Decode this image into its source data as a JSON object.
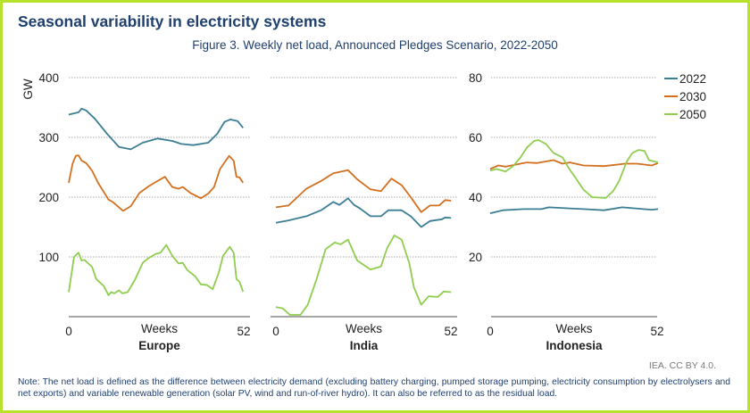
{
  "header": {
    "title": "Seasonal variability in electricity systems",
    "subtitle": "Figure 3. Weekly net load, Announced Pledges Scenario, 2022-2050"
  },
  "footer": {
    "credit": "IEA. CC BY 4.0.",
    "note": "Note: The net load is defined as the difference between electricity demand (excluding battery charging, pumped storage pumping, electricity consumption by electrolysers and net exports) and variable renewable generation (solar PV, wind and run-of-river hydro). It can also be referred to as the residual load."
  },
  "chart_data": {
    "type": "line",
    "ylabel": "GW",
    "legend": {
      "placement": "right",
      "entries": [
        "2022",
        "2030",
        "2050"
      ]
    },
    "colors": {
      "2022": "#3b7e94",
      "2030": "#d2701f",
      "2050": "#8fcd4f"
    },
    "grid": "horizontal dotted",
    "panels": [
      {
        "name": "Europe",
        "xlabel": "Weeks",
        "xticks": [
          "0",
          "52"
        ],
        "xlim": [
          0,
          52
        ],
        "ylim": [
          0,
          400
        ],
        "yticks": [
          "400",
          "300",
          "200",
          "100"
        ],
        "series": [
          {
            "name": "2022",
            "points": [
              [
                0,
                338
              ],
              [
                2.8,
                342
              ],
              [
                3.7,
                348
              ],
              [
                5,
                345
              ],
              [
                7.5,
                331
              ],
              [
                11,
                306
              ],
              [
                14.4,
                284
              ],
              [
                17.8,
                280
              ],
              [
                21.2,
                291
              ],
              [
                25.5,
                298
              ],
              [
                29.7,
                294
              ],
              [
                32.3,
                289
              ],
              [
                35.7,
                287
              ],
              [
                40,
                291
              ],
              [
                42.6,
                306
              ],
              [
                44.7,
                326
              ],
              [
                46.4,
                330
              ],
              [
                48.5,
                327
              ],
              [
                50,
                316
              ]
            ]
          },
          {
            "name": "2030",
            "points": [
              [
                0,
                224
              ],
              [
                1.1,
                256
              ],
              [
                2,
                269
              ],
              [
                2.8,
                270
              ],
              [
                3.7,
                261
              ],
              [
                5,
                257
              ],
              [
                6.7,
                244
              ],
              [
                8.4,
                224
              ],
              [
                11.4,
                196
              ],
              [
                12.6,
                192
              ],
              [
                15.6,
                177
              ],
              [
                17.8,
                185
              ],
              [
                20.3,
                207
              ],
              [
                22.9,
                218
              ],
              [
                25.5,
                227
              ],
              [
                27.6,
                234
              ],
              [
                29.7,
                217
              ],
              [
                31.5,
                214
              ],
              [
                32.7,
                217
              ],
              [
                34.9,
                207
              ],
              [
                37.9,
                198
              ],
              [
                40,
                206
              ],
              [
                41.7,
                217
              ],
              [
                43.4,
                247
              ],
              [
                46,
                269
              ],
              [
                47.3,
                261
              ],
              [
                48.1,
                234
              ],
              [
                49,
                233
              ],
              [
                50,
                224
              ]
            ]
          },
          {
            "name": "2050",
            "points": [
              [
                0,
                41
              ],
              [
                1.5,
                100
              ],
              [
                2.8,
                107
              ],
              [
                3.7,
                94
              ],
              [
                4.5,
                95
              ],
              [
                6.7,
                83
              ],
              [
                7.9,
                63
              ],
              [
                10.1,
                51
              ],
              [
                11.4,
                36
              ],
              [
                12.2,
                41
              ],
              [
                13.1,
                39
              ],
              [
                14.4,
                44
              ],
              [
                15.4,
                39
              ],
              [
                16.9,
                41
              ],
              [
                19.1,
                63
              ],
              [
                21.2,
                90
              ],
              [
                22.9,
                98
              ],
              [
                25,
                105
              ],
              [
                26.3,
                107
              ],
              [
                28,
                120
              ],
              [
                29.7,
                102
              ],
              [
                31.5,
                89
              ],
              [
                32.7,
                90
              ],
              [
                34,
                78
              ],
              [
                36.2,
                68
              ],
              [
                37.9,
                54
              ],
              [
                39.6,
                53
              ],
              [
                41.3,
                46
              ],
              [
                43,
                73
              ],
              [
                44.3,
                102
              ],
              [
                46.2,
                117
              ],
              [
                47.3,
                107
              ],
              [
                48.1,
                63
              ],
              [
                49,
                58
              ],
              [
                50,
                42
              ]
            ]
          }
        ]
      },
      {
        "name": "India",
        "xlabel": "Weeks",
        "xticks": [
          "0",
          "52"
        ],
        "xlim": [
          0,
          52
        ],
        "ylim": [
          0,
          400
        ],
        "series": [
          {
            "name": "2022",
            "points": [
              [
                0,
                157
              ],
              [
                3.6,
                161
              ],
              [
                8.7,
                168
              ],
              [
                12.9,
                178
              ],
              [
                16.4,
                192
              ],
              [
                18.1,
                187
              ],
              [
                20.6,
                198
              ],
              [
                22.3,
                187
              ],
              [
                24,
                181
              ],
              [
                27,
                168
              ],
              [
                30,
                168
              ],
              [
                32.1,
                178
              ],
              [
                35.9,
                178
              ],
              [
                38.5,
                168
              ],
              [
                41.5,
                150
              ],
              [
                44,
                160
              ],
              [
                47.4,
                163
              ],
              [
                48.3,
                166
              ],
              [
                50,
                165
              ]
            ]
          },
          {
            "name": "2030",
            "points": [
              [
                0,
                183
              ],
              [
                3.6,
                186
              ],
              [
                8.7,
                214
              ],
              [
                12.9,
                227
              ],
              [
                16.4,
                240
              ],
              [
                20.6,
                245
              ],
              [
                23.2,
                230
              ],
              [
                27,
                213
              ],
              [
                30,
                210
              ],
              [
                33,
                231
              ],
              [
                35.9,
                220
              ],
              [
                38.5,
                200
              ],
              [
                41.5,
                175
              ],
              [
                44,
                186
              ],
              [
                46.6,
                186
              ],
              [
                48.3,
                195
              ],
              [
                50,
                194
              ]
            ]
          },
          {
            "name": "2050",
            "points": [
              [
                0,
                16
              ],
              [
                1.9,
                14
              ],
              [
                4,
                3
              ],
              [
                7,
                3
              ],
              [
                9.1,
                20
              ],
              [
                11.7,
                64
              ],
              [
                14.2,
                113
              ],
              [
                16.8,
                124
              ],
              [
                18.5,
                121
              ],
              [
                20.6,
                129
              ],
              [
                23.2,
                94
              ],
              [
                27,
                79
              ],
              [
                30,
                84
              ],
              [
                31.7,
                114
              ],
              [
                33.8,
                136
              ],
              [
                35.9,
                129
              ],
              [
                38.1,
                89
              ],
              [
                39.4,
                49
              ],
              [
                41.5,
                20
              ],
              [
                43.6,
                34
              ],
              [
                46.2,
                33
              ],
              [
                47.9,
                42
              ],
              [
                50,
                41
              ]
            ]
          }
        ]
      },
      {
        "name": "Indonesia",
        "xlabel": "Weeks",
        "xticks": [
          "0",
          "52"
        ],
        "xlim": [
          0,
          52
        ],
        "ylim": [
          0,
          80
        ],
        "yticks": [
          "80",
          "60",
          "40",
          "20"
        ],
        "series": [
          {
            "name": "2022",
            "points": [
              [
                0,
                34.6
              ],
              [
                3.9,
                35.6
              ],
              [
                10.4,
                36
              ],
              [
                15.9,
                36
              ],
              [
                18.2,
                36.6
              ],
              [
                23.3,
                36.3
              ],
              [
                28.9,
                36
              ],
              [
                35.3,
                35.6
              ],
              [
                40.9,
                36.6
              ],
              [
                47.4,
                36
              ],
              [
                50.1,
                35.8
              ],
              [
                52,
                36
              ]
            ]
          },
          {
            "name": "2030",
            "points": [
              [
                0,
                49.4
              ],
              [
                2.5,
                50.6
              ],
              [
                4.8,
                50.2
              ],
              [
                7.6,
                50.8
              ],
              [
                11.3,
                51.6
              ],
              [
                14.5,
                51.4
              ],
              [
                19.6,
                52.4
              ],
              [
                22.4,
                51.2
              ],
              [
                24.7,
                51.6
              ],
              [
                28.9,
                50.6
              ],
              [
                35.3,
                50.4
              ],
              [
                41.8,
                51.2
              ],
              [
                45.5,
                51.2
              ],
              [
                50.1,
                50.6
              ],
              [
                52,
                51.4
              ]
            ]
          },
          {
            "name": "2050",
            "points": [
              [
                0,
                48.9
              ],
              [
                2,
                49.4
              ],
              [
                4.8,
                48.6
              ],
              [
                7.1,
                50.4
              ],
              [
                9.4,
                53.3
              ],
              [
                11.3,
                56.5
              ],
              [
                13.6,
                58.8
              ],
              [
                15,
                59.1
              ],
              [
                17.3,
                57.8
              ],
              [
                19.6,
                54.8
              ],
              [
                22.4,
                53.3
              ],
              [
                24.2,
                49.9
              ],
              [
                26.5,
                46.4
              ],
              [
                28.9,
                42.5
              ],
              [
                31.6,
                40
              ],
              [
                35.8,
                39.7
              ],
              [
                38.1,
                42
              ],
              [
                40,
                45.5
              ],
              [
                42.3,
                51.9
              ],
              [
                44.1,
                54.8
              ],
              [
                46,
                55.8
              ],
              [
                47.8,
                55.5
              ],
              [
                49.2,
                52.4
              ],
              [
                52,
                51.6
              ]
            ]
          }
        ]
      }
    ]
  }
}
